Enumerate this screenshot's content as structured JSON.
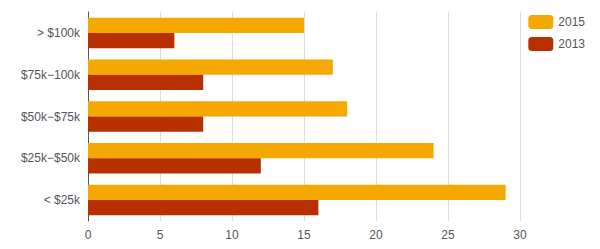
{
  "chart_data": {
    "type": "bar",
    "orientation": "horizontal",
    "categories": [
      "> $100k",
      "$75k−100k",
      "$50k−$75k",
      "$25k−$50k",
      "< $25k"
    ],
    "series": [
      {
        "name": "2015",
        "color": "#F5A800",
        "values": [
          15,
          17,
          18,
          24,
          29
        ]
      },
      {
        "name": "2013",
        "color": "#B83000",
        "values": [
          6,
          8,
          8,
          12,
          16
        ]
      }
    ],
    "xlim": [
      0,
      30
    ],
    "xticks": [
      0,
      5,
      10,
      15,
      20,
      25,
      30
    ],
    "grid": true,
    "legend": "right"
  }
}
